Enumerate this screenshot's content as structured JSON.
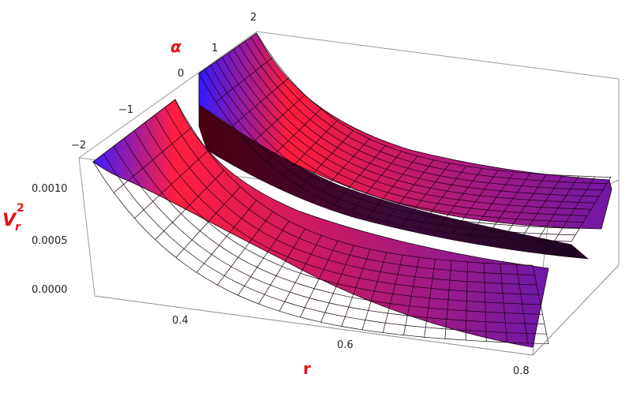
{
  "chart_data": {
    "type": "surface3d",
    "title": "",
    "axes": {
      "x": {
        "label": "r",
        "range": [
          0.3,
          0.8
        ],
        "ticks": [
          "0.4",
          "0.6",
          "0.8"
        ]
      },
      "y": {
        "label": "α",
        "range": [
          -2,
          2
        ],
        "ticks": [
          "−2",
          "−1",
          "0",
          "1",
          "2"
        ]
      },
      "z": {
        "label_base": "V",
        "label_sub": "r",
        "label_sup": "2",
        "range": [
          0,
          0.0012
        ],
        "ticks": [
          "0.0000",
          "0.0005",
          "0.0010"
        ]
      }
    },
    "surface": {
      "description_points": [
        {
          "r": 0.3,
          "alpha": -2,
          "value": 0.00125
        },
        {
          "r": 0.3,
          "alpha": -0.5,
          "value": 0.00118
        },
        {
          "r": 0.3,
          "alpha": 0.5,
          "value": 0.0012
        },
        {
          "r": 0.3,
          "alpha": 2,
          "value": 0.00125
        },
        {
          "r": 0.8,
          "alpha": -2,
          "value": 0.0
        },
        {
          "r": 0.8,
          "alpha": 2,
          "value": 0.0001
        }
      ],
      "gap_alpha_range": [
        -0.5,
        0.5
      ],
      "colors": {
        "high": "#2b1bff",
        "mid": "#ff1a35",
        "low": "#7a1aa8"
      }
    },
    "box": true,
    "grid": false,
    "legend": "none"
  },
  "colors": {
    "axis_label": "#e8101a",
    "box_line": "#9a9a9a",
    "mesh_line": "#1a0010"
  }
}
